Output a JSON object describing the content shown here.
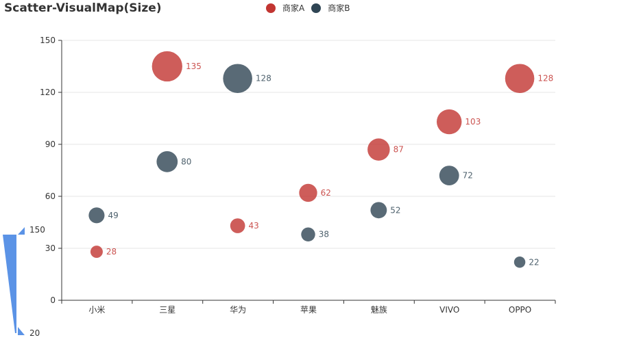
{
  "chart_data": {
    "type": "scatter",
    "title": "Scatter-VisualMap(Size)",
    "categories": [
      "小米",
      "三星",
      "华为",
      "苹果",
      "魅族",
      "VIVO",
      "OPPO"
    ],
    "series": [
      {
        "name": "商家A",
        "color": "#c23531",
        "values": [
          28,
          135,
          43,
          62,
          87,
          103,
          128
        ]
      },
      {
        "name": "商家B",
        "color": "#2f4554",
        "values": [
          49,
          80,
          128,
          38,
          52,
          72,
          22
        ]
      }
    ],
    "ylim": [
      0,
      150
    ],
    "yticks": [
      0,
      30,
      60,
      90,
      120,
      150
    ],
    "grid": true,
    "legend_position": "top-center",
    "visual_map": {
      "dimension": "size",
      "max_label": "150",
      "min_label": "20",
      "color": "#5b93e6"
    }
  }
}
